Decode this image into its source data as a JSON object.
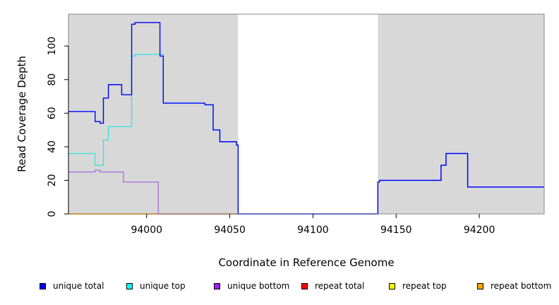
{
  "chart_data": {
    "type": "line",
    "xlabel": "Coordinate in Reference Genome",
    "ylabel": "Read Coverage Depth",
    "xlim": [
      93953,
      94239
    ],
    "ylim": [
      0,
      119
    ],
    "xticks": [
      94000,
      94050,
      94100,
      94150,
      94200
    ],
    "yticks": [
      0,
      20,
      40,
      60,
      80,
      100
    ],
    "grid": false,
    "shaded_regions": [
      {
        "from": 93953,
        "to": 94055
      },
      {
        "from": 94139,
        "to": 94239
      }
    ],
    "series": [
      {
        "name": "unique top",
        "color": "#40e0e0",
        "x": [
          93953,
          93969,
          93969,
          93974,
          93974,
          93977,
          93977,
          93991,
          93991,
          93993,
          93993,
          94010,
          94010,
          94035,
          94035,
          94040,
          94040,
          94044,
          94044,
          94054,
          94054,
          94055,
          94055,
          94139,
          94139,
          94140,
          94140,
          94177,
          94177,
          94180,
          94180,
          94193,
          94193,
          94239
        ],
        "y": [
          36,
          36,
          29,
          29,
          44,
          44,
          52,
          52,
          94,
          94,
          95,
          95,
          66,
          66,
          65,
          65,
          50,
          50,
          43,
          43,
          41,
          41,
          0,
          0,
          19,
          19,
          20,
          20,
          29,
          29,
          36,
          36,
          16,
          16
        ]
      },
      {
        "name": "unique bottom",
        "color": "#b070e0",
        "x": [
          93953,
          93969,
          93969,
          93972,
          93972,
          93986,
          93986,
          94007,
          94007,
          94139,
          94139,
          94140,
          94140,
          94177,
          94177,
          94180,
          94180,
          94193,
          94193,
          94239
        ],
        "y": [
          25,
          25,
          26,
          26,
          25,
          25,
          19,
          19,
          0,
          0,
          19,
          19,
          20,
          20,
          29,
          29,
          36,
          36,
          16,
          16
        ]
      },
      {
        "name": "unique total",
        "color": "#0000ff",
        "x": [
          93953,
          93969,
          93969,
          93972,
          93972,
          93974,
          93974,
          93977,
          93977,
          93985,
          93985,
          93991,
          93991,
          93993,
          93993,
          94008,
          94008,
          94010,
          94010,
          94035,
          94035,
          94040,
          94040,
          94044,
          94044,
          94054,
          94054,
          94055,
          94055,
          94139,
          94139,
          94140,
          94140,
          94177,
          94177,
          94180,
          94180,
          94193,
          94193,
          94239
        ],
        "y": [
          61,
          61,
          55,
          55,
          54,
          54,
          69,
          69,
          77,
          77,
          71,
          71,
          113,
          113,
          114,
          114,
          94,
          94,
          66,
          66,
          65,
          65,
          50,
          50,
          43,
          43,
          41,
          41,
          0,
          0,
          19,
          19,
          20,
          20,
          29,
          29,
          36,
          36,
          16,
          16
        ]
      },
      {
        "name": "repeat total",
        "color": "#ff0000",
        "x": [
          93953,
          94055
        ],
        "y": [
          0,
          0
        ]
      },
      {
        "name": "repeat top",
        "color": "#ffff00",
        "x": [
          93953,
          94055
        ],
        "y": [
          0,
          0
        ]
      },
      {
        "name": "repeat bottom",
        "color": "#ffa500",
        "x": [
          93953,
          94055
        ],
        "y": [
          0,
          0
        ]
      }
    ],
    "legend": [
      {
        "label": "unique total",
        "color": "#0000ff"
      },
      {
        "label": "unique top",
        "color": "#00ffff"
      },
      {
        "label": "unique bottom",
        "color": "#a020f0"
      },
      {
        "label": "repeat total",
        "color": "#ff0000"
      },
      {
        "label": "repeat top",
        "color": "#ffff00"
      },
      {
        "label": "repeat bottom",
        "color": "#ffa500"
      }
    ],
    "legend_position": "bottom"
  }
}
